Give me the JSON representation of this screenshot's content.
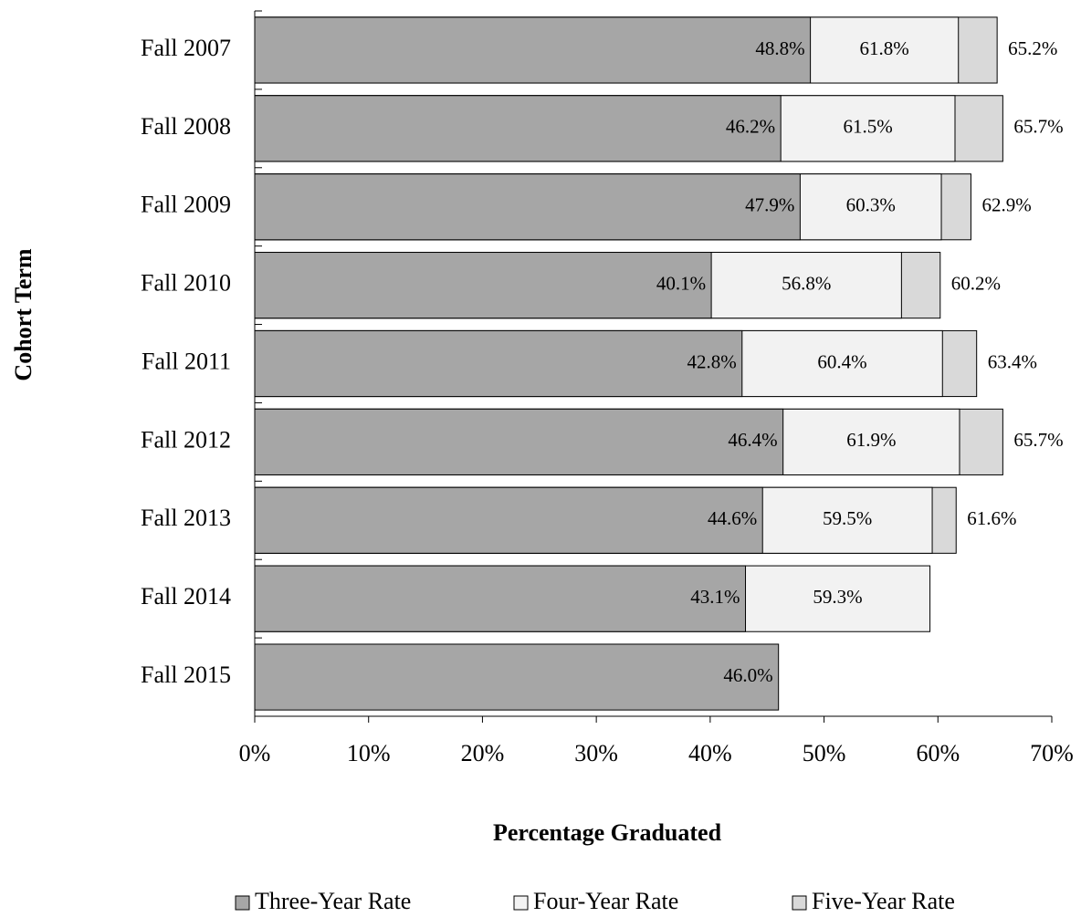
{
  "chart_data": {
    "type": "bar",
    "horizontal": true,
    "categories": [
      "Fall 2007",
      "Fall 2008",
      "Fall 2009",
      "Fall 2010",
      "Fall 2011",
      "Fall 2012",
      "Fall 2013",
      "Fall 2014",
      "Fall 2015"
    ],
    "series": [
      {
        "name": "Three-Year Rate",
        "color": "#a6a6a6",
        "values": [
          48.8,
          46.2,
          47.9,
          40.1,
          42.8,
          46.4,
          44.6,
          43.1,
          46.0
        ],
        "value_labels": [
          "48.8%",
          "46.2%",
          "47.9%",
          "40.1%",
          "42.8%",
          "46.4%",
          "44.6%",
          "43.1%",
          "46.0%"
        ]
      },
      {
        "name": "Four-Year Rate",
        "color": "#f2f2f2",
        "values": [
          61.8,
          61.5,
          60.3,
          56.8,
          60.4,
          61.9,
          59.5,
          59.3,
          null
        ],
        "value_labels": [
          "61.8%",
          "61.5%",
          "60.3%",
          "56.8%",
          "60.4%",
          "61.9%",
          "59.5%",
          "59.3%",
          null
        ]
      },
      {
        "name": "Five-Year Rate",
        "color": "#d9d9d9",
        "values": [
          65.2,
          65.7,
          62.9,
          60.2,
          63.4,
          65.7,
          61.6,
          null,
          null
        ],
        "value_labels": [
          "65.2%",
          "65.7%",
          "62.9%",
          "60.2%",
          "63.4%",
          "65.7%",
          "61.6%",
          null,
          null
        ]
      }
    ],
    "xlim": [
      0,
      70
    ],
    "xticks": [
      {
        "value": 0,
        "label": "0%"
      },
      {
        "value": 10,
        "label": "10%"
      },
      {
        "value": 20,
        "label": "20%"
      },
      {
        "value": 30,
        "label": "30%"
      },
      {
        "value": 40,
        "label": "40%"
      },
      {
        "value": 50,
        "label": "50%"
      },
      {
        "value": 60,
        "label": "60%"
      },
      {
        "value": 70,
        "label": "70%"
      }
    ],
    "xlabel": "Percentage Graduated",
    "ylabel": "Cohort Term",
    "legend": "bottom"
  }
}
